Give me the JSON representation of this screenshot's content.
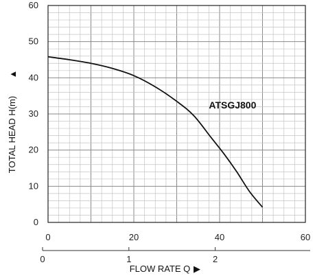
{
  "chart_data": {
    "type": "line",
    "ylabel": "TOTAL HEAD H(m)",
    "ylabel_arrow": "▲",
    "xlabel": "FLOW RATE Q",
    "xlabel_arrow": "▶",
    "xlim": [
      0,
      60
    ],
    "ylim": [
      0,
      60
    ],
    "x_ticks": [
      0,
      20,
      40,
      60
    ],
    "y_ticks": [
      0,
      10,
      20,
      30,
      40,
      50,
      60
    ],
    "secondary_x_ticks": [
      {
        "label": "0",
        "value": 0
      },
      {
        "label": "1",
        "value": 1
      },
      {
        "label": "2",
        "value": 2
      }
    ],
    "secondary_xlim": [
      0,
      3.1
    ],
    "grid": true,
    "series": [
      {
        "name": "ATSGJ800",
        "x": [
          0,
          5,
          10,
          15,
          20,
          25,
          30,
          34,
          38,
          41,
          44,
          47,
          50
        ],
        "y": [
          45.8,
          45.0,
          44.0,
          42.6,
          40.6,
          37.5,
          33.5,
          29.5,
          23.5,
          19.0,
          14.0,
          8.5,
          4.2
        ]
      }
    ]
  }
}
